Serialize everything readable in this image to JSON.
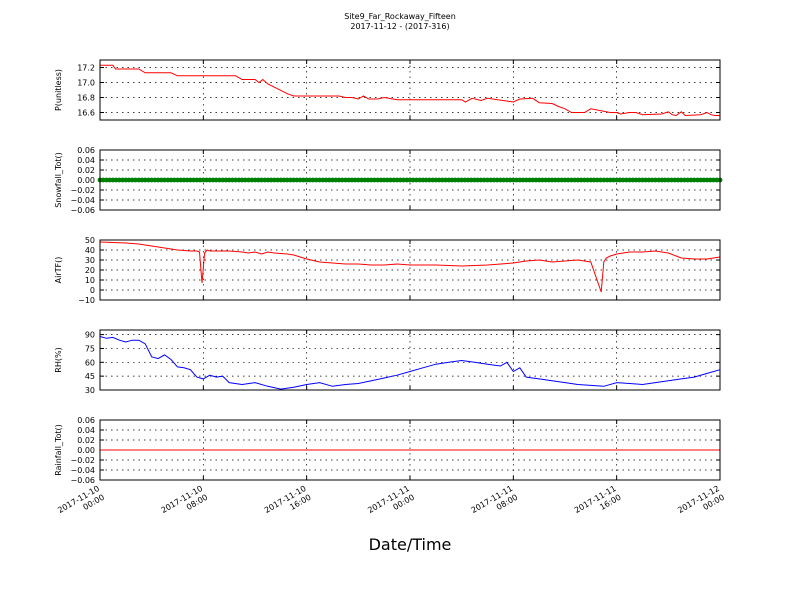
{
  "figure": {
    "title_line1": "Site9_Far_Rockaway_Fifteen",
    "title_line2": "2017-11-12 - (2017-316)",
    "xlabel": "Date/Time",
    "x_ticks": [
      {
        "l1": "2017-11-10",
        "l2": "00:00"
      },
      {
        "l1": "2017-11-10",
        "l2": "08:00"
      },
      {
        "l1": "2017-11-10",
        "l2": "16:00"
      },
      {
        "l1": "2017-11-11",
        "l2": "00:00"
      },
      {
        "l1": "2017-11-11",
        "l2": "08:00"
      },
      {
        "l1": "2017-11-11",
        "l2": "16:00"
      },
      {
        "l1": "2017-11-12",
        "l2": "00:00"
      }
    ],
    "x_start": "2017-11-10 00:00",
    "x_end": "2017-11-12 00:00"
  },
  "chart_data": [
    {
      "type": "line",
      "ylabel": "P(unitless)",
      "ylim": [
        16.5,
        17.3
      ],
      "yticks": [
        "16.6",
        "16.8",
        "17.0",
        "17.2"
      ],
      "ytick_values": [
        16.6,
        16.8,
        17.0,
        17.2
      ],
      "color": "#ff0000",
      "x_hours": [
        0,
        1,
        1.2,
        3,
        3.5,
        5.5,
        6,
        10.5,
        11,
        12,
        12.3,
        12.6,
        13,
        14.5,
        15,
        18.5,
        19,
        19.5,
        20,
        20.4,
        20.8,
        21.5,
        22,
        23,
        28,
        28.3,
        28.8,
        29.5,
        30,
        32,
        32.5,
        33.5,
        34,
        35,
        35.5,
        36,
        36.5,
        37.5,
        38,
        39.5,
        40,
        40.3,
        41,
        41.5,
        42,
        43.5,
        44,
        44.3,
        44.6,
        45,
        45.3,
        46.5,
        47,
        47.3,
        47.6,
        48
      ],
      "values": [
        17.23,
        17.23,
        17.18,
        17.18,
        17.13,
        17.13,
        17.09,
        17.09,
        17.04,
        17.04,
        17.0,
        17.04,
        16.98,
        16.85,
        16.82,
        16.82,
        16.8,
        16.8,
        16.78,
        16.82,
        16.78,
        16.78,
        16.8,
        16.77,
        16.77,
        16.74,
        16.79,
        16.76,
        16.79,
        16.74,
        16.78,
        16.79,
        16.73,
        16.72,
        16.68,
        16.65,
        16.6,
        16.6,
        16.65,
        16.6,
        16.6,
        16.58,
        16.6,
        16.6,
        16.57,
        16.58,
        16.61,
        16.57,
        16.56,
        16.61,
        16.56,
        16.57,
        16.6,
        16.57,
        16.56,
        16.56
      ]
    },
    {
      "type": "scatter",
      "ylabel": "Snowfall_Tot()",
      "ylim": [
        -0.06,
        0.06
      ],
      "yticks": [
        "−0.06",
        "−0.04",
        "−0.02",
        "0.00",
        "0.02",
        "0.04",
        "0.06"
      ],
      "ytick_values": [
        -0.06,
        -0.04,
        -0.02,
        0.0,
        0.02,
        0.04,
        0.06
      ],
      "color": "#008000",
      "constant_value": 0.0,
      "point_interval_hours": 0.25
    },
    {
      "type": "line",
      "ylabel": "AirTF()",
      "ylim": [
        -10,
        50
      ],
      "yticks": [
        "−10",
        "0",
        "10",
        "20",
        "30",
        "40",
        "50"
      ],
      "ytick_values": [
        -10,
        0,
        10,
        20,
        30,
        40,
        50
      ],
      "color": "#ff0000",
      "x_hours": [
        0,
        2,
        3,
        4,
        5,
        6,
        7,
        7.5,
        7.7,
        7.9,
        8.1,
        8.3,
        8.5,
        9,
        10,
        11,
        11.5,
        12,
        12.5,
        13,
        13.5,
        14.5,
        15,
        16,
        17,
        18,
        19,
        20,
        21,
        22,
        23,
        24,
        26,
        28,
        30,
        32,
        33,
        34,
        35,
        36,
        37,
        38,
        38.8,
        39,
        39.2,
        39.5,
        40,
        41,
        42,
        43,
        44,
        45,
        46,
        47,
        48
      ],
      "values": [
        48,
        47,
        46,
        44,
        42,
        40,
        39,
        39,
        38,
        7,
        37,
        40,
        39,
        39,
        39,
        38,
        37,
        38,
        36,
        38,
        37,
        36,
        35,
        31,
        28,
        27,
        26,
        26,
        25,
        25,
        26,
        25,
        25,
        24,
        25,
        27,
        29,
        30,
        28,
        29,
        30,
        28,
        -2,
        28,
        32,
        34,
        36,
        38,
        38,
        39,
        37,
        32,
        31,
        31,
        33
      ]
    },
    {
      "type": "line",
      "ylabel": "RH(%)",
      "ylim": [
        30,
        95
      ],
      "yticks": [
        "30",
        "45",
        "60",
        "75",
        "90"
      ],
      "ytick_values": [
        30,
        45,
        60,
        75,
        90
      ],
      "color": "#0000ff",
      "x_hours": [
        0,
        0.5,
        1,
        1.5,
        2,
        2.5,
        3,
        3.5,
        4,
        4.5,
        5,
        5.5,
        6,
        6.5,
        7,
        7.5,
        8,
        8.5,
        9,
        9.5,
        10,
        11,
        12,
        13,
        14,
        15,
        16,
        17,
        18,
        19,
        20,
        21,
        22,
        23,
        24,
        25,
        26,
        27,
        28,
        29,
        30,
        31,
        31.5,
        32,
        32.5,
        33,
        34,
        35,
        36,
        37,
        38,
        39,
        40,
        41,
        42,
        43,
        44,
        45,
        46,
        47,
        48
      ],
      "values": [
        88,
        86,
        87,
        84,
        82,
        84,
        84,
        80,
        66,
        64,
        68,
        63,
        55,
        54,
        52,
        44,
        42,
        46,
        44,
        45,
        38,
        36,
        38,
        34,
        31,
        33,
        36,
        38,
        34,
        36,
        37,
        40,
        43,
        46,
        50,
        54,
        58,
        60,
        62,
        60,
        58,
        56,
        60,
        50,
        54,
        44,
        42,
        40,
        38,
        36,
        35,
        34,
        38,
        37,
        36,
        38,
        40,
        42,
        44,
        48,
        52
      ]
    },
    {
      "type": "line",
      "ylabel": "Rainfall_Tot()",
      "ylim": [
        -0.06,
        0.06
      ],
      "yticks": [
        "−0.06",
        "−0.04",
        "−0.02",
        "0.00",
        "0.02",
        "0.04",
        "0.06"
      ],
      "ytick_values": [
        -0.06,
        -0.04,
        -0.02,
        0.0,
        0.02,
        0.04,
        0.06
      ],
      "color": "#ff0000",
      "x_hours": [
        0,
        48
      ],
      "values": [
        0.0,
        0.0
      ]
    }
  ]
}
